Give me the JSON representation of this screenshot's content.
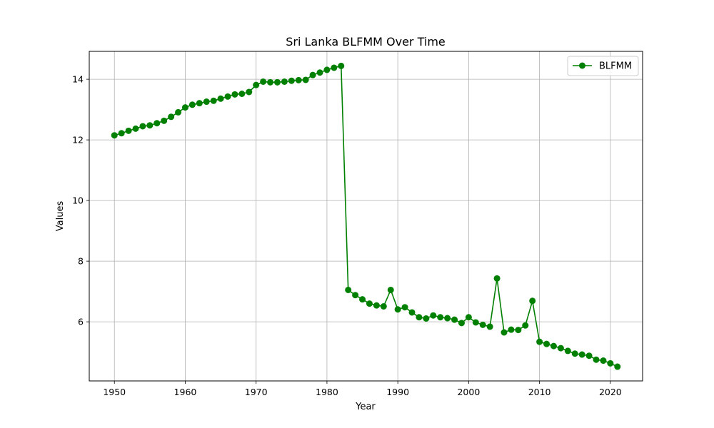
{
  "chart_data": {
    "type": "line",
    "title": "Sri Lanka BLFMM Over Time",
    "xlabel": "Year",
    "ylabel": "Values",
    "xlim": [
      1946.45,
      2024.55
    ],
    "ylim": [
      4.05,
      14.92
    ],
    "xticks": [
      1950,
      1960,
      1970,
      1980,
      1990,
      2000,
      2010,
      2020
    ],
    "yticks": [
      6,
      8,
      10,
      12,
      14
    ],
    "grid": true,
    "legend_position": "top-right",
    "series": [
      {
        "name": "BLFMM",
        "color": "#008000",
        "marker": "circle",
        "x": [
          1950,
          1951,
          1952,
          1953,
          1954,
          1955,
          1956,
          1957,
          1958,
          1959,
          1960,
          1961,
          1962,
          1963,
          1964,
          1965,
          1966,
          1967,
          1968,
          1969,
          1970,
          1971,
          1972,
          1973,
          1974,
          1975,
          1976,
          1977,
          1978,
          1979,
          1980,
          1981,
          1982,
          1983,
          1984,
          1985,
          1986,
          1987,
          1988,
          1989,
          1990,
          1991,
          1992,
          1993,
          1994,
          1995,
          1996,
          1997,
          1998,
          1999,
          2000,
          2001,
          2002,
          2003,
          2004,
          2005,
          2006,
          2007,
          2008,
          2009,
          2010,
          2011,
          2012,
          2013,
          2014,
          2015,
          2016,
          2017,
          2018,
          2019,
          2020,
          2021
        ],
        "values": [
          12.15,
          12.22,
          12.3,
          12.37,
          12.45,
          12.48,
          12.55,
          12.63,
          12.76,
          12.91,
          13.07,
          13.16,
          13.21,
          13.26,
          13.29,
          13.36,
          13.43,
          13.5,
          13.52,
          13.58,
          13.81,
          13.92,
          13.9,
          13.9,
          13.92,
          13.95,
          13.97,
          13.98,
          14.14,
          14.22,
          14.31,
          14.38,
          14.44,
          7.05,
          6.88,
          6.74,
          6.6,
          6.54,
          6.51,
          7.05,
          6.41,
          6.48,
          6.31,
          6.15,
          6.11,
          6.21,
          6.15,
          6.12,
          6.07,
          5.96,
          6.15,
          5.98,
          5.9,
          5.84,
          7.43,
          5.65,
          5.74,
          5.73,
          5.88,
          6.69,
          5.34,
          5.27,
          5.2,
          5.13,
          5.04,
          4.95,
          4.92,
          4.88,
          4.75,
          4.72,
          4.63,
          4.52
        ]
      }
    ]
  }
}
